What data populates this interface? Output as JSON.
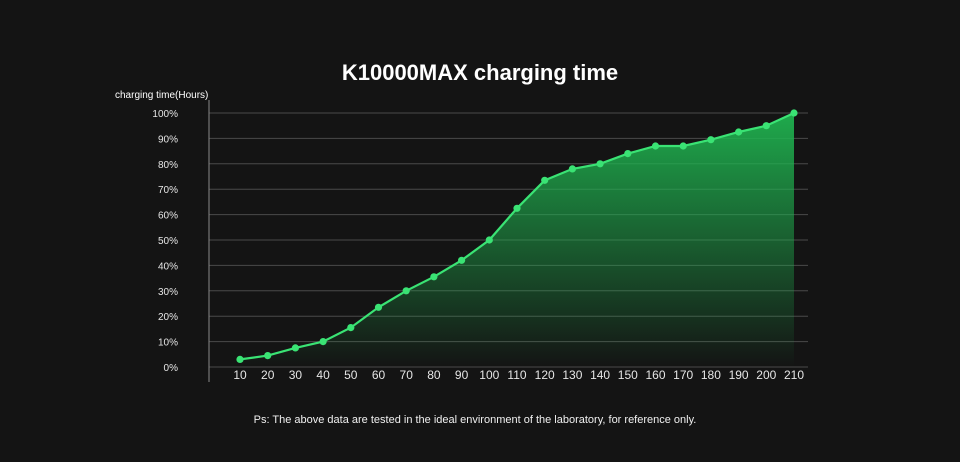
{
  "chart_data": {
    "type": "area",
    "title": "K10000MAX charging time",
    "ylabel": "charging time(Hours)",
    "xlabel": "",
    "x": [
      10,
      20,
      30,
      40,
      50,
      60,
      70,
      80,
      90,
      100,
      110,
      120,
      130,
      140,
      150,
      160,
      170,
      180,
      190,
      200,
      210
    ],
    "x_tick_labels": [
      "10",
      "20",
      "30",
      "40",
      "50",
      "60",
      "70",
      "80",
      "90",
      "100",
      "110",
      "120",
      "130",
      "140",
      "150",
      "160",
      "170",
      "180",
      "190",
      "200",
      "210"
    ],
    "y_tick_labels": [
      "0%",
      "10%",
      "20%",
      "30%",
      "40%",
      "50%",
      "60%",
      "70%",
      "80%",
      "90%",
      "100%"
    ],
    "y_ticks": [
      0,
      10,
      20,
      30,
      40,
      50,
      60,
      70,
      80,
      90,
      100
    ],
    "ylim": [
      0,
      100
    ],
    "values": [
      3,
      4.5,
      7.5,
      10,
      15.5,
      23.5,
      30,
      35.5,
      42,
      50,
      62.5,
      73.5,
      78,
      80,
      84,
      87,
      87,
      89.5,
      92.5,
      95,
      100
    ],
    "grid": true,
    "colors": {
      "line": "#3ae374",
      "marker": "#3ae374",
      "fill": "#1fb24f",
      "grid": "#4a4a4a",
      "background": "#141414"
    },
    "footnote": "Ps: The above data are tested in the ideal environment of the laboratory, for reference only."
  }
}
